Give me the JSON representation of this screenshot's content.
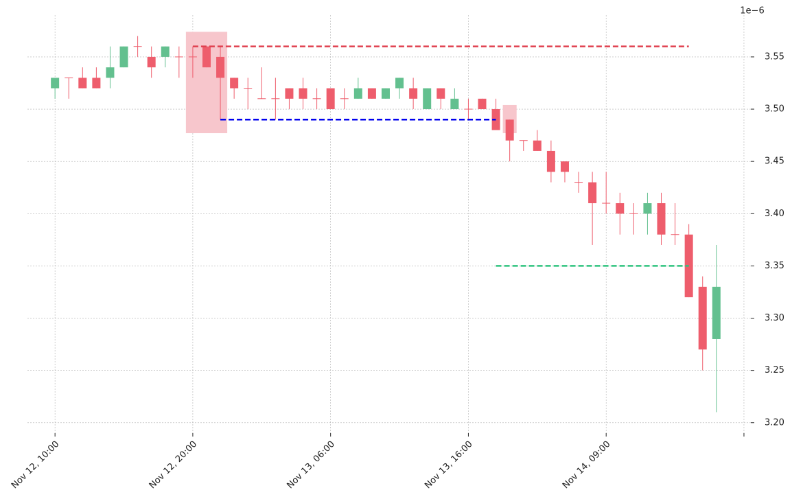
{
  "chart_data": {
    "type": "candlestick",
    "y_offset_label": "1e−6",
    "up_color": "#63c08f",
    "down_color": "#ee5d6c",
    "grid": true,
    "xlim": [
      -2,
      50.5
    ],
    "xticks": [
      {
        "value": 0,
        "label": "Nov 12, 10:00"
      },
      {
        "value": 10,
        "label": "Nov 12, 20:00"
      },
      {
        "value": 20,
        "label": "Nov 13, 06:00"
      },
      {
        "value": 30,
        "label": "Nov 13, 16:00"
      },
      {
        "value": 40,
        "label": "Nov 14, 09:00"
      },
      {
        "value": 50,
        "label": null
      }
    ],
    "ylim": [
      3.19,
      3.59
    ],
    "yticks": [
      {
        "value": 3.2,
        "label": "3.20"
      },
      {
        "value": 3.25,
        "label": "3.25"
      },
      {
        "value": 3.3,
        "label": "3.30"
      },
      {
        "value": 3.35,
        "label": "3.35"
      },
      {
        "value": 3.4,
        "label": "3.40"
      },
      {
        "value": 3.45,
        "label": "3.45"
      },
      {
        "value": 3.5,
        "label": "3.50"
      },
      {
        "value": 3.55,
        "label": "3.55"
      }
    ],
    "open": [
      3.52,
      3.53,
      3.53,
      3.53,
      3.53,
      3.54,
      3.56,
      3.55,
      3.55,
      3.55,
      3.55,
      3.56,
      3.55,
      3.53,
      3.52,
      3.51,
      3.51,
      3.52,
      3.52,
      3.51,
      3.52,
      3.51,
      3.51,
      3.52,
      3.51,
      3.52,
      3.52,
      3.5,
      3.52,
      3.5,
      3.5,
      3.51,
      3.5,
      3.49,
      3.47,
      3.47,
      3.46,
      3.45,
      3.43,
      3.43,
      3.41,
      3.41,
      3.4,
      3.4,
      3.41,
      3.38,
      3.38,
      3.33,
      3.28
    ],
    "high": [
      3.53,
      3.53,
      3.54,
      3.54,
      3.56,
      3.56,
      3.57,
      3.56,
      3.56,
      3.56,
      3.56,
      3.56,
      3.56,
      3.53,
      3.53,
      3.54,
      3.53,
      3.52,
      3.53,
      3.52,
      3.52,
      3.52,
      3.53,
      3.52,
      3.52,
      3.53,
      3.53,
      3.52,
      3.52,
      3.52,
      3.51,
      3.51,
      3.51,
      3.49,
      3.47,
      3.48,
      3.47,
      3.45,
      3.44,
      3.44,
      3.44,
      3.42,
      3.41,
      3.42,
      3.42,
      3.41,
      3.39,
      3.34,
      3.37
    ],
    "low": [
      3.51,
      3.51,
      3.52,
      3.52,
      3.52,
      3.54,
      3.55,
      3.53,
      3.54,
      3.53,
      3.53,
      3.54,
      3.49,
      3.51,
      3.5,
      3.51,
      3.49,
      3.5,
      3.5,
      3.5,
      3.5,
      3.5,
      3.51,
      3.51,
      3.51,
      3.51,
      3.5,
      3.5,
      3.5,
      3.5,
      3.49,
      3.5,
      3.48,
      3.45,
      3.46,
      3.46,
      3.43,
      3.43,
      3.42,
      3.37,
      3.4,
      3.38,
      3.38,
      3.38,
      3.37,
      3.37,
      3.32,
      3.25,
      3.21
    ],
    "close": [
      3.53,
      3.53,
      3.52,
      3.52,
      3.54,
      3.56,
      3.56,
      3.54,
      3.56,
      3.55,
      3.55,
      3.54,
      3.53,
      3.52,
      3.52,
      3.51,
      3.51,
      3.51,
      3.51,
      3.51,
      3.5,
      3.51,
      3.52,
      3.51,
      3.52,
      3.53,
      3.51,
      3.52,
      3.51,
      3.51,
      3.5,
      3.5,
      3.48,
      3.47,
      3.47,
      3.46,
      3.44,
      3.44,
      3.43,
      3.41,
      3.41,
      3.4,
      3.4,
      3.41,
      3.38,
      3.38,
      3.32,
      3.27,
      3.33
    ],
    "highlights": [
      {
        "color": "#f7c6cc",
        "x": [
          9.5,
          12.5
        ],
        "y": [
          3.477,
          3.574
        ]
      },
      {
        "color": "#f7c6cc",
        "x": [
          32.5,
          33.5
        ],
        "y": [
          3.477,
          3.504
        ]
      }
    ],
    "lines": [
      {
        "color": "#e0404f",
        "y": 3.56,
        "x": [
          10,
          46
        ]
      },
      {
        "color": "#0000ee",
        "y": 3.49,
        "x": [
          12,
          32
        ]
      },
      {
        "color": "#2ec27e",
        "y": 3.35,
        "x": [
          32,
          46
        ]
      }
    ]
  }
}
